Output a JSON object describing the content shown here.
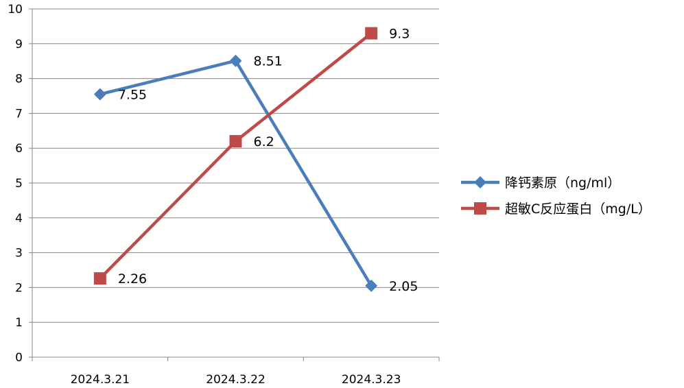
{
  "chart_data": {
    "type": "line",
    "categories": [
      "2024.3.21",
      "2024.3.22",
      "2024.3.23"
    ],
    "series": [
      {
        "name": "降钙素原（ng/ml）",
        "values": [
          7.55,
          8.51,
          2.05
        ],
        "value_labels": [
          "7.55",
          "8.51",
          "2.05"
        ],
        "color": "#4A7EBB",
        "marker": "diamond"
      },
      {
        "name": "超敏C反应蛋白（mg/L）",
        "values": [
          2.26,
          6.2,
          9.3
        ],
        "value_labels": [
          "2.26",
          "6.2",
          "9.3"
        ],
        "color": "#BE4B48",
        "marker": "square"
      }
    ],
    "ylim": [
      0,
      10
    ],
    "yticks": [
      "0",
      "1",
      "2",
      "3",
      "4",
      "5",
      "6",
      "7",
      "8",
      "9",
      "10"
    ],
    "title": "",
    "xlabel": "",
    "ylabel": "",
    "grid": true,
    "legend": "right"
  }
}
